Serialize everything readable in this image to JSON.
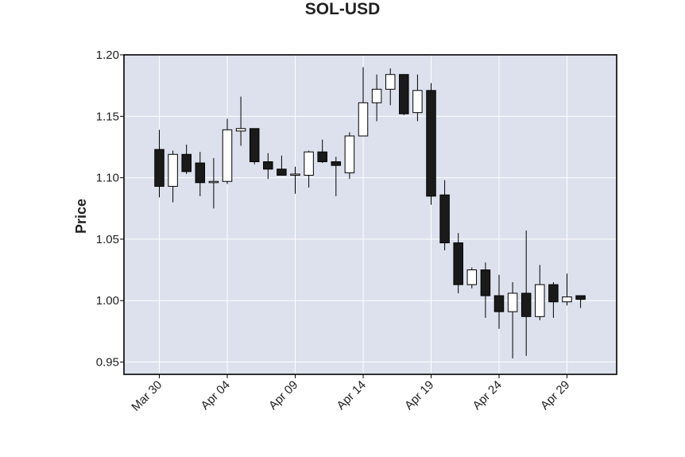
{
  "chart_data": {
    "type": "candlestick",
    "title": "SOL-USD",
    "ylabel": "Price",
    "xlabel": "",
    "ylim": [
      0.94,
      1.2
    ],
    "yticks": [
      0.95,
      1.0,
      1.05,
      1.1,
      1.15,
      1.2
    ],
    "ytick_labels": [
      "0.95",
      "1.00",
      "1.05",
      "1.10",
      "1.15",
      "1.20"
    ],
    "xtick_labels": [
      "Mar 30",
      "Apr 04",
      "Apr 09",
      "Apr 14",
      "Apr 19",
      "Apr 24",
      "Apr 29"
    ],
    "xtick_index": [
      0,
      5,
      10,
      15,
      20,
      25,
      30
    ],
    "grid": true,
    "colors": {
      "background": "#dce1ed",
      "up": "#ffffff",
      "down": "#1a1a1a",
      "edge": "#000000",
      "grid": "#ffffff"
    },
    "dates": [
      "Mar 30",
      "Mar 31",
      "Apr 01",
      "Apr 02",
      "Apr 03",
      "Apr 04",
      "Apr 05",
      "Apr 06",
      "Apr 07",
      "Apr 08",
      "Apr 09",
      "Apr 10",
      "Apr 11",
      "Apr 12",
      "Apr 13",
      "Apr 14",
      "Apr 15",
      "Apr 16",
      "Apr 17",
      "Apr 18",
      "Apr 19",
      "Apr 20",
      "Apr 21",
      "Apr 22",
      "Apr 23",
      "Apr 24",
      "Apr 25",
      "Apr 26",
      "Apr 27",
      "Apr 28",
      "Apr 29",
      "Apr 30"
    ],
    "ohlc": [
      [
        1.123,
        1.139,
        1.084,
        1.093
      ],
      [
        1.093,
        1.122,
        1.08,
        1.119
      ],
      [
        1.119,
        1.127,
        1.103,
        1.105
      ],
      [
        1.112,
        1.121,
        1.085,
        1.096
      ],
      [
        1.096,
        1.116,
        1.075,
        1.097
      ],
      [
        1.097,
        1.148,
        1.095,
        1.139
      ],
      [
        1.138,
        1.166,
        1.126,
        1.14
      ],
      [
        1.14,
        1.14,
        1.111,
        1.113
      ],
      [
        1.113,
        1.12,
        1.099,
        1.107
      ],
      [
        1.107,
        1.118,
        1.102,
        1.102
      ],
      [
        1.102,
        1.109,
        1.087,
        1.103
      ],
      [
        1.102,
        1.122,
        1.092,
        1.121
      ],
      [
        1.121,
        1.131,
        1.112,
        1.113
      ],
      [
        1.113,
        1.117,
        1.085,
        1.11
      ],
      [
        1.104,
        1.137,
        1.099,
        1.134
      ],
      [
        1.134,
        1.19,
        1.134,
        1.161
      ],
      [
        1.161,
        1.184,
        1.146,
        1.172
      ],
      [
        1.172,
        1.189,
        1.159,
        1.184
      ],
      [
        1.184,
        1.184,
        1.151,
        1.152
      ],
      [
        1.153,
        1.184,
        1.146,
        1.171
      ],
      [
        1.171,
        1.177,
        1.078,
        1.085
      ],
      [
        1.086,
        1.098,
        1.041,
        1.047
      ],
      [
        1.047,
        1.055,
        1.006,
        1.013
      ],
      [
        1.013,
        1.027,
        1.01,
        1.025
      ],
      [
        1.025,
        1.031,
        0.986,
        1.004
      ],
      [
        1.004,
        1.021,
        0.977,
        0.991
      ],
      [
        0.991,
        1.015,
        0.953,
        1.006
      ],
      [
        1.006,
        1.057,
        0.955,
        0.987
      ],
      [
        0.987,
        1.029,
        0.984,
        1.013
      ],
      [
        1.013,
        1.015,
        0.986,
        0.999
      ],
      [
        0.999,
        1.022,
        0.996,
        1.003
      ],
      [
        1.004,
        1.004,
        0.994,
        1.001
      ]
    ]
  }
}
